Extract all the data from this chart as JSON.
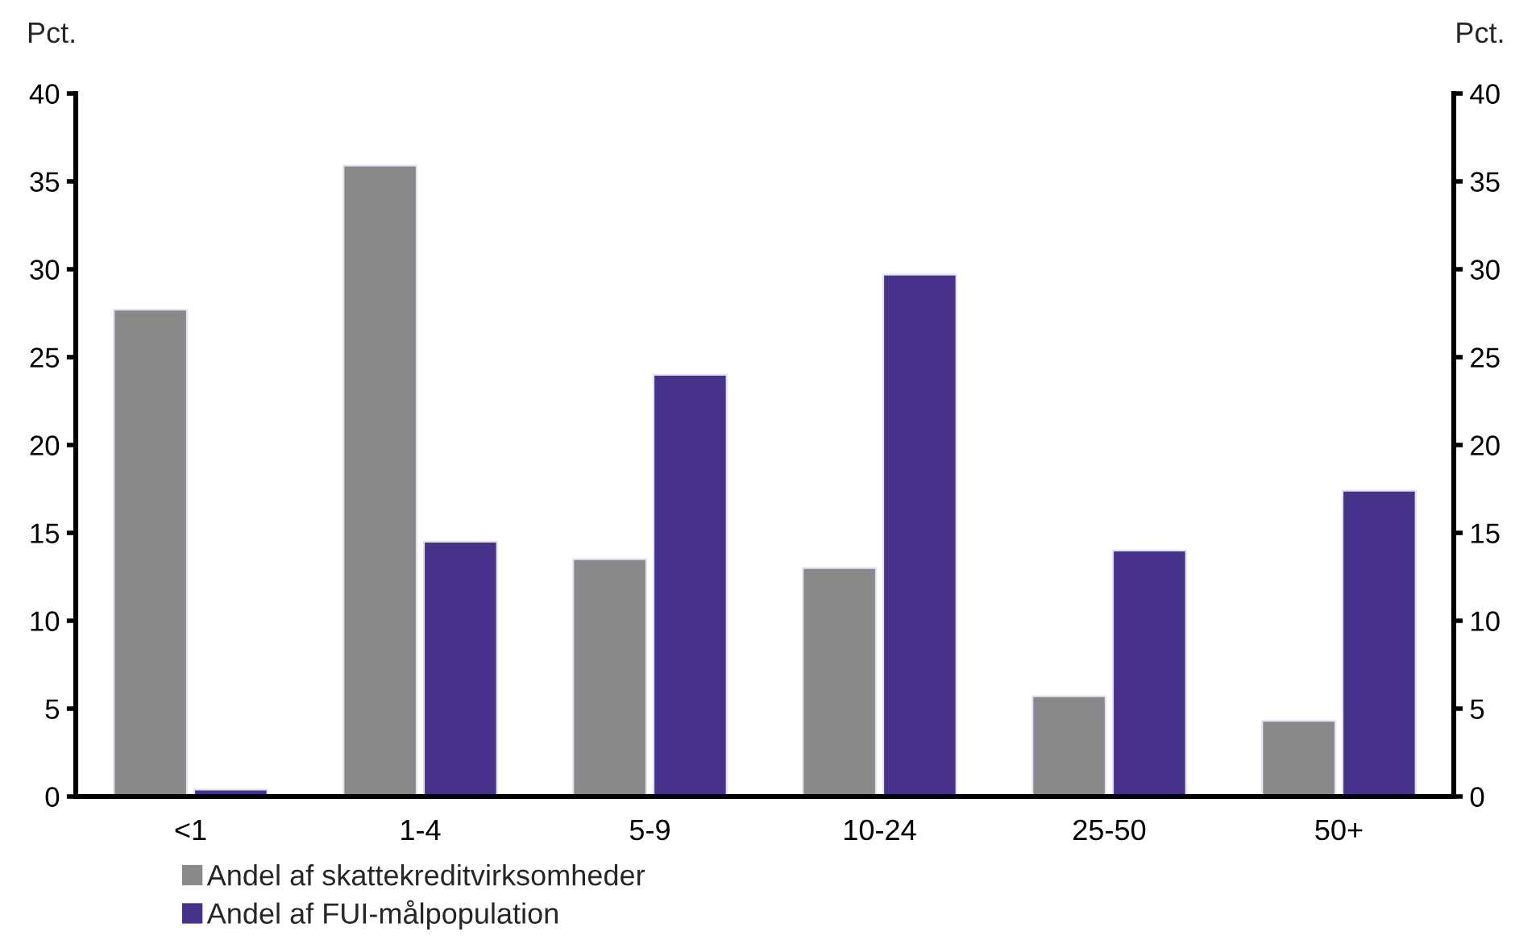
{
  "chart_data": {
    "type": "bar",
    "ylabel": "Pct.",
    "y2label": "Pct.",
    "categories": [
      "<1",
      "1-4",
      "5-9",
      "10-24",
      "25-50",
      "50+"
    ],
    "series": [
      {
        "name": "Andel af skattekreditvirksomheder",
        "color": "#898989",
        "values": [
          27.7,
          35.9,
          13.5,
          13.0,
          5.7,
          4.3
        ]
      },
      {
        "name": "Andel af FUI-målpopulation",
        "color": "#46328a",
        "values": [
          0.4,
          14.5,
          24.0,
          29.7,
          14.0,
          17.4
        ]
      }
    ],
    "ylim": [
      0,
      40
    ],
    "yticks": [
      0,
      5,
      10,
      15,
      20,
      25,
      30,
      35,
      40
    ],
    "y2lim": [
      0,
      40
    ],
    "y2ticks": [
      0,
      5,
      10,
      15,
      20,
      25,
      30,
      35,
      40
    ],
    "grid": false,
    "legend": "bottom"
  }
}
